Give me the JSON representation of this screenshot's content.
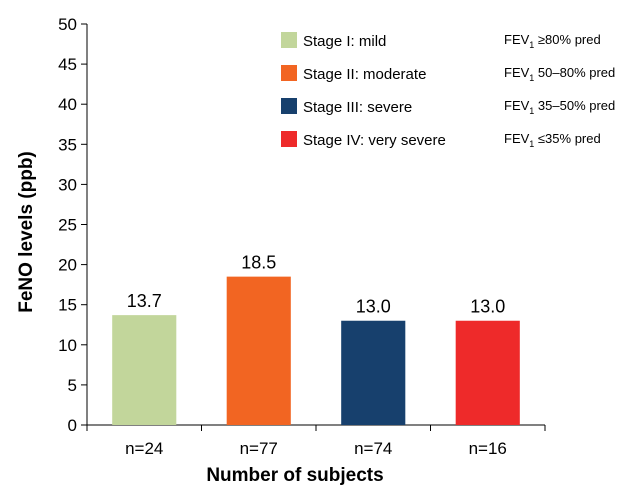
{
  "chart_data": {
    "type": "bar",
    "categories": [
      "n=24",
      "n=77",
      "n=74",
      "n=16"
    ],
    "values": [
      13.7,
      18.5,
      13.0,
      13.0
    ],
    "value_labels": [
      "13.7",
      "18.5",
      "13.0",
      "13.0"
    ],
    "xlabel": "Number of subjects",
    "ylabel": "FeNO levels (ppb)",
    "ylim": [
      0,
      50
    ],
    "yticks": [
      0,
      5,
      10,
      15,
      20,
      25,
      30,
      35,
      40,
      45,
      50
    ],
    "grid": false,
    "legend_position": "top-right",
    "legend": [
      {
        "label": "Stage I: mild",
        "color": "#c2d69b",
        "fev_prefix": "FEV",
        "fev_sub": "1",
        "fev_rest": " ≥80% pred"
      },
      {
        "label": "Stage II: moderate",
        "color": "#f26522",
        "fev_prefix": "FEV",
        "fev_sub": "1",
        "fev_rest": " 50–80% pred"
      },
      {
        "label": "Stage III: severe",
        "color": "#17406d",
        "fev_prefix": "FEV",
        "fev_sub": "1",
        "fev_rest": " 35–50% pred"
      },
      {
        "label": "Stage IV: very severe",
        "color": "#ee2a2a",
        "fev_prefix": "FEV",
        "fev_sub": "1",
        "fev_rest": " ≤35% pred"
      }
    ],
    "colors": [
      "#c2d69b",
      "#f26522",
      "#17406d",
      "#ee2a2a"
    ]
  }
}
